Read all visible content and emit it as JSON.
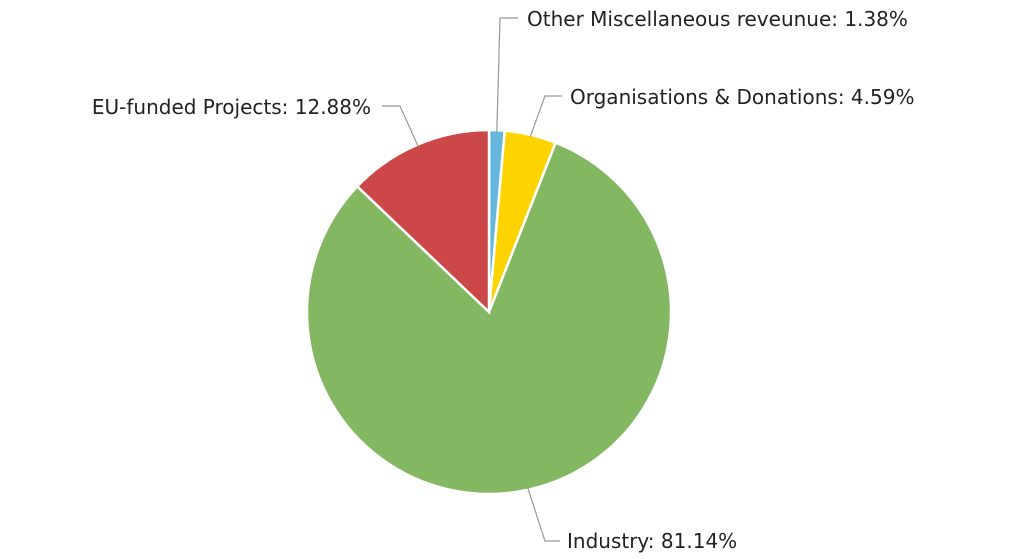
{
  "chart_data": {
    "type": "pie",
    "values": [
      1.38,
      4.59,
      81.14,
      12.88
    ],
    "value_labels": [
      "Other Miscellaneous reveunue: 1.38%",
      "Organisations & Donations: 4.59%",
      "Industry: 81.14%",
      "EU-funded Projects: 12.88%"
    ],
    "colors": [
      "#67b7dc",
      "#fdd400",
      "#84b761",
      "#cc4748"
    ]
  }
}
